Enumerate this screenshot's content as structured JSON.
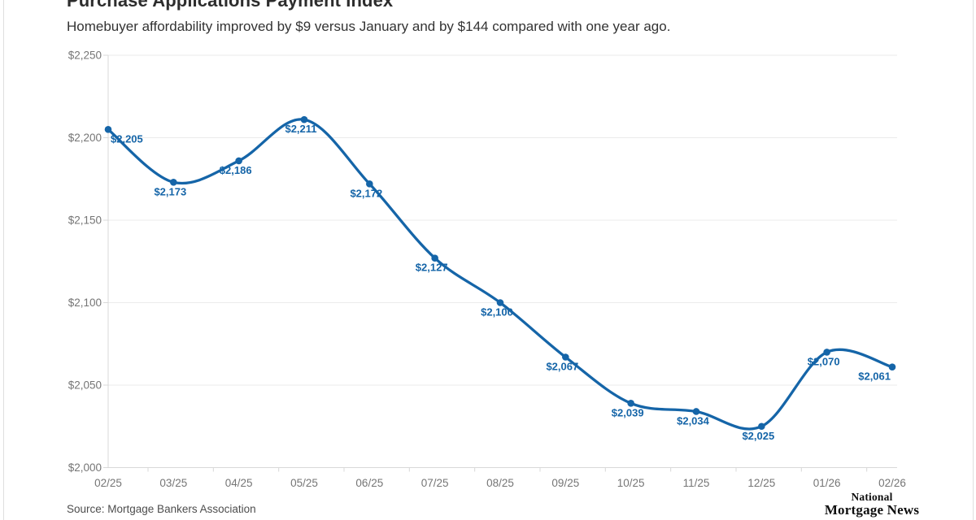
{
  "header": {
    "title": "Purchase Applications Payment Index",
    "subtitle": "Homebuyer affordability improved by $9 versus January and by $144 compared with one year ago."
  },
  "chart_data": {
    "type": "line",
    "title": "Purchase Applications Payment Index",
    "x": [
      "02/25",
      "03/25",
      "04/25",
      "05/25",
      "06/25",
      "07/25",
      "08/25",
      "09/25",
      "10/25",
      "11/25",
      "12/25",
      "01/26",
      "02/26"
    ],
    "series": [
      {
        "name": "Purchase Applications Payment Index",
        "values": [
          2205,
          2173,
          2186,
          2211,
          2172,
          2127,
          2100,
          2067,
          2039,
          2034,
          2025,
          2070,
          2061
        ]
      }
    ],
    "point_labels": [
      "$2,205",
      "$2,173",
      "$2,186",
      "$2,211",
      "$2,172",
      "$2,127",
      "$2,100",
      "$2,067",
      "$2,039",
      "$2,034",
      "$2,025",
      "$2,070",
      "$2,061"
    ],
    "xlabel": "",
    "ylabel": "",
    "ylim": [
      2000,
      2250
    ],
    "ytick_step": 50,
    "ytick_labels": [
      "$2,000",
      "$2,050",
      "$2,100",
      "$2,150",
      "$2,200",
      "$2,250"
    ],
    "grid": true,
    "legend_position": "none",
    "colors": {
      "line": "#1565a8",
      "point_label": "#1565a8",
      "gridline": "#ebebeb",
      "axis_line": "#d8d8d8",
      "axis_text": "#757575"
    }
  },
  "footer": {
    "source": "Source: Mortgage Bankers Association",
    "logo": {
      "line1": "National",
      "line2": "Mortgage News"
    }
  }
}
